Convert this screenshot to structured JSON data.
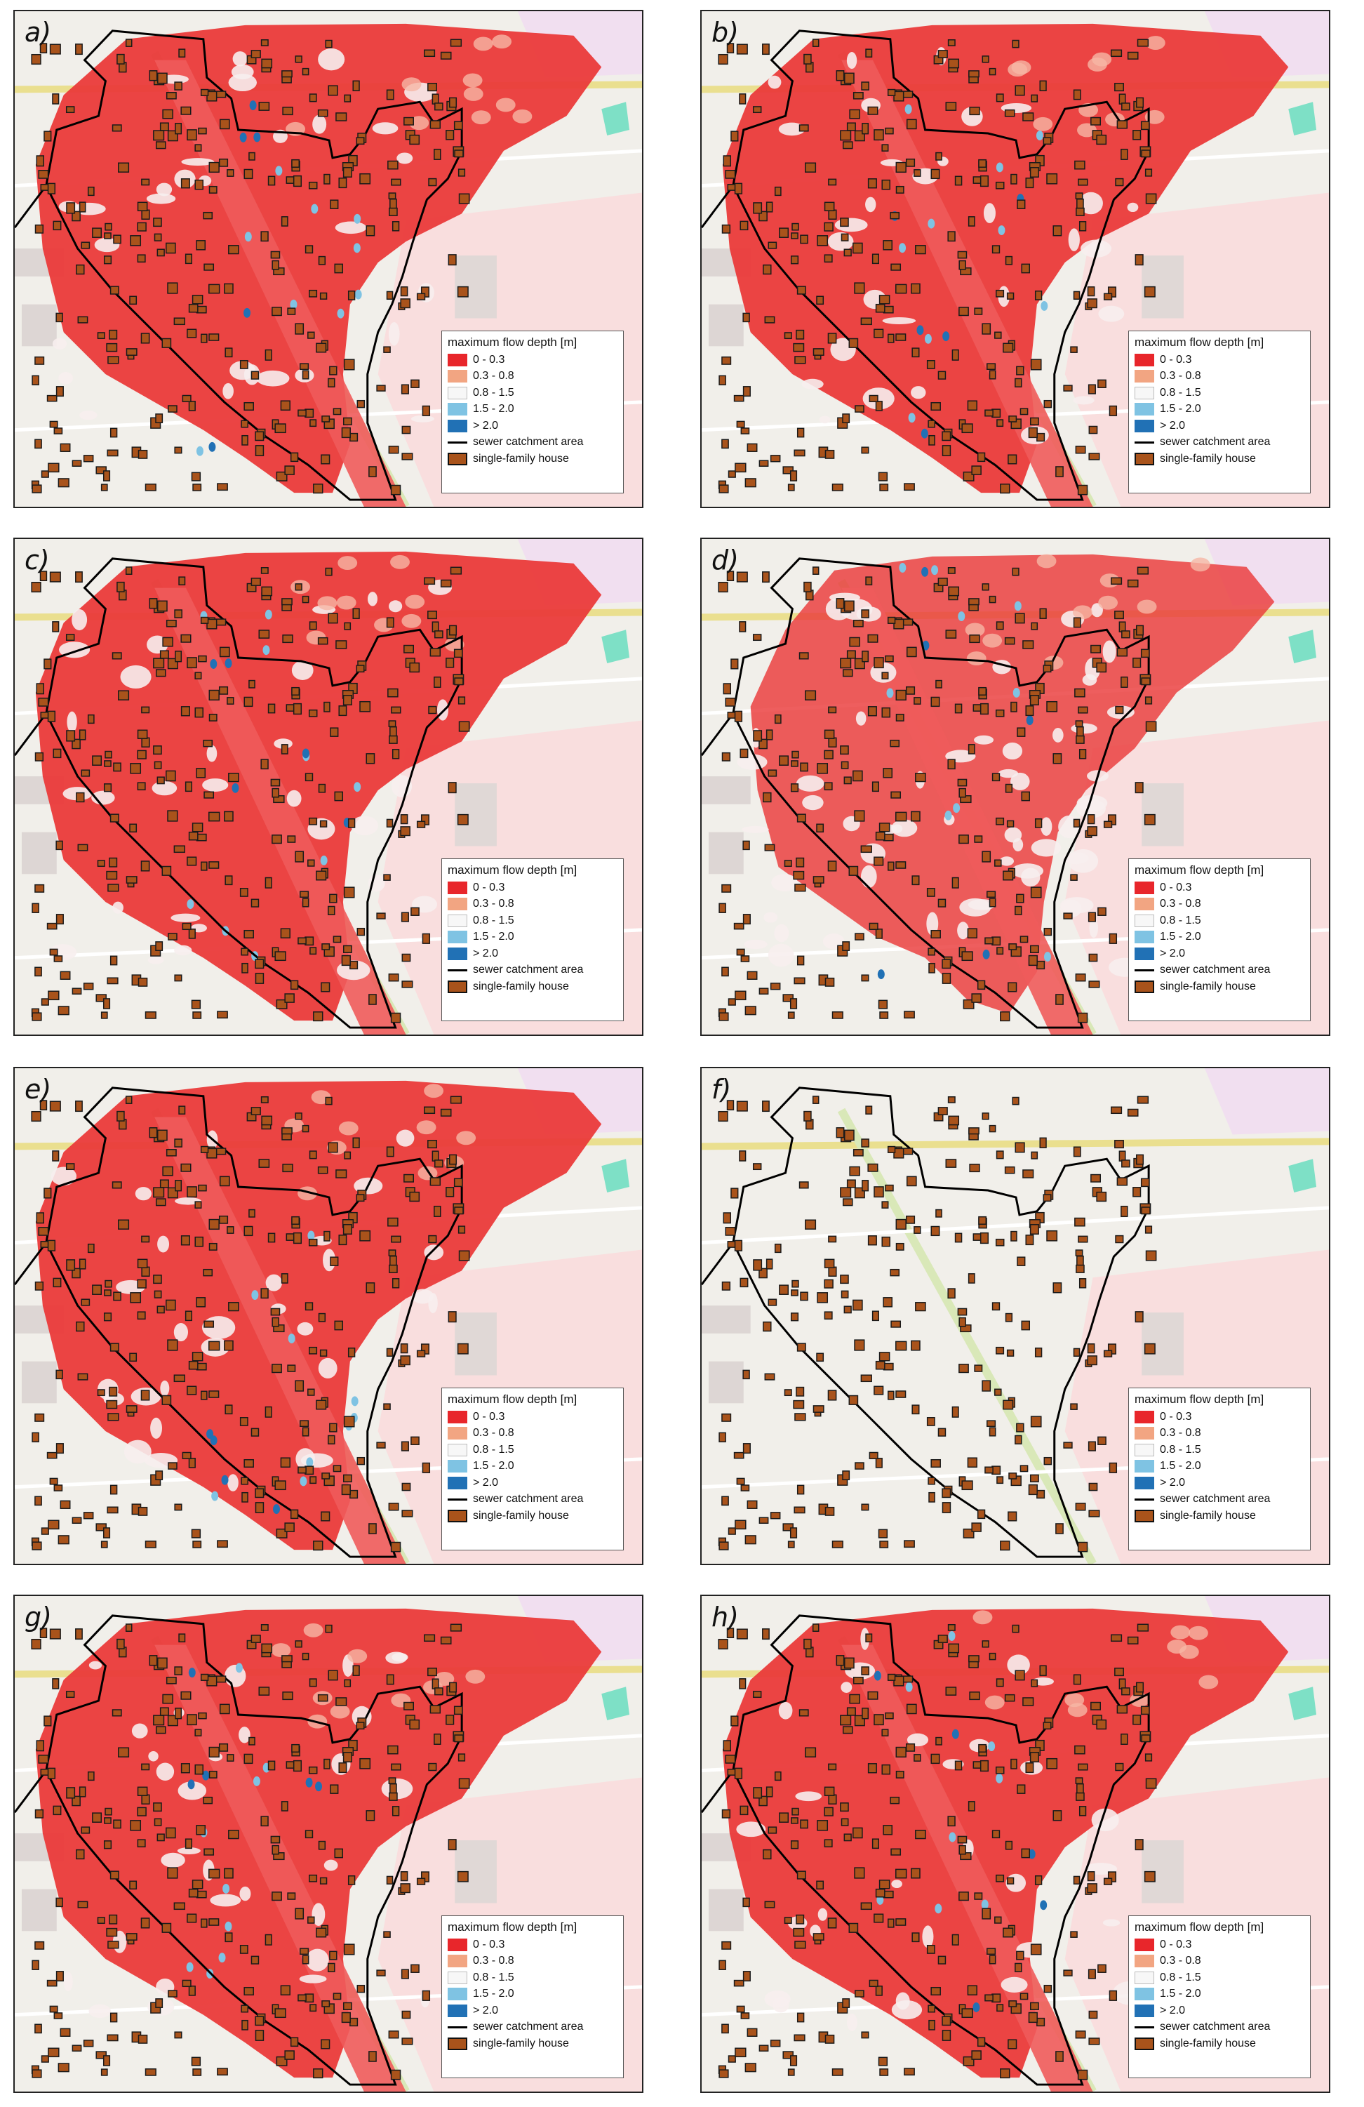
{
  "legend": {
    "title": "maximum flow depth [m]",
    "classes": [
      {
        "label": "0 - 0.3",
        "color": "#e8262b"
      },
      {
        "label": "0.3 - 0.8",
        "color": "#f2a582"
      },
      {
        "label": "0.8 - 1.5",
        "color": "#f7f7f7"
      },
      {
        "label": "1.5 - 2.0",
        "color": "#7fc3e3"
      },
      {
        "label": "> 2.0",
        "color": "#2171b5"
      }
    ],
    "catchment": {
      "label": "sewer catchment area",
      "color": "#000000"
    },
    "house": {
      "label": "single-family house",
      "color": "#a9531b"
    }
  },
  "panels": [
    {
      "label": "a)",
      "flood": "full"
    },
    {
      "label": "b)",
      "flood": "full"
    },
    {
      "label": "c)",
      "flood": "full"
    },
    {
      "label": "d)",
      "flood": "reduced"
    },
    {
      "label": "e)",
      "flood": "full"
    },
    {
      "label": "f)",
      "flood": "none"
    },
    {
      "label": "g)",
      "flood": "full"
    },
    {
      "label": "h)",
      "flood": "full"
    }
  ]
}
